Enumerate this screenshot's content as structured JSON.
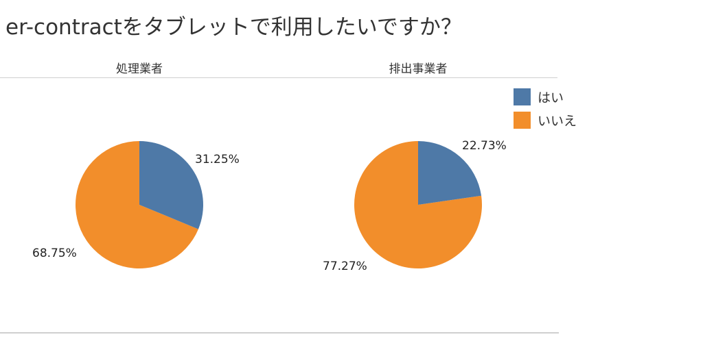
{
  "title": "er-contractをタブレットで利用したいですか？",
  "columns": [
    "処理業者",
    "排出事業者"
  ],
  "legend": [
    {
      "label": "はい",
      "color": "#4e79a7"
    },
    {
      "label": "いいえ",
      "color": "#f28e2b"
    }
  ],
  "labels": {
    "pie0_yes": "31.25%",
    "pie0_no": "68.75%",
    "pie1_yes": "22.73%",
    "pie1_no": "77.27%"
  },
  "chart_data": {
    "type": "pie",
    "title": "er-contractをタブレットで利用したいですか？",
    "legend_position": "right",
    "legend": [
      "はい",
      "いいえ"
    ],
    "colors": {
      "はい": "#4e79a7",
      "いいえ": "#f28e2b"
    },
    "pies": [
      {
        "name": "処理業者",
        "categories": [
          "はい",
          "いいえ"
        ],
        "values": [
          31.25,
          68.75
        ]
      },
      {
        "name": "排出事業者",
        "categories": [
          "はい",
          "いいえ"
        ],
        "values": [
          22.73,
          77.27
        ]
      }
    ]
  }
}
